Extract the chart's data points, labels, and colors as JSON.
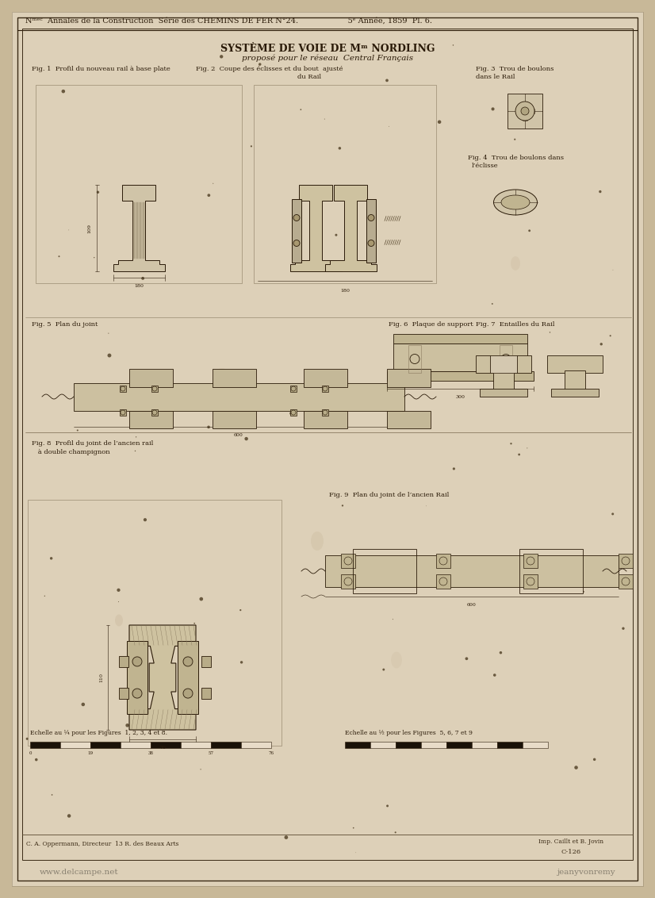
{
  "bg_color": "#c8b898",
  "paper_color": "#ddd0b8",
  "inner_paper": "#d8cab0",
  "line_color": "#2a1a08",
  "text_color": "#2a1a08",
  "dim_color": "#3a2a15",
  "header": "Nᵐᵉᶜ  Annales de la Construction  Série des CHEMINS DE FER N°24.                    5ᵉ Année, 1859  Pl. 6.",
  "title1": "SYSTÈME DE VOIE DE Mᵐ NORDLING",
  "title2": "proposé pour le réseau  Central Français",
  "fig1_lbl": "Fig. 1  Profil du nouveau rail à base plate",
  "fig2_lbl": "Fig. 2  Coupe des éclisses et du bout  ajusté",
  "fig2_lbl2": "du Rail",
  "fig3_lbl": "Fig. 3  Trou de boulons",
  "fig3_lbl2": "dans le Rail",
  "fig4_lbl": "Fig. 4  Trou de boulons dans",
  "fig4_lbl2": "l’éclisse",
  "fig5_lbl": "Fig. 5  Plan du joint",
  "fig6_lbl": "Fig. 6  Plaque de support",
  "fig7_lbl": "Fig. 7  Entailles du Rail",
  "fig8_lbl": "Fig. 8  Profil du joint de l’ancien rail",
  "fig8_lbl2": "   à double champignon",
  "fig9_lbl": "Fig. 9  Plan du joint de l’ancien Rail",
  "scale1": "Echelle au ¼ pour les Figures  1, 2, 3, 4 et 8.",
  "scale2": "Echelle au ½ pour les Figures  5, 6, 7 et 9",
  "footer_l": "C. A. Oppermann, Directeur  13 R. des Beaux Arts",
  "footer_r1": "Imp. Caillt et B. Jovin",
  "footer_r2": "C-126",
  "wm_left": "www.delcampe.net",
  "wm_right": "jeanyvonremy"
}
